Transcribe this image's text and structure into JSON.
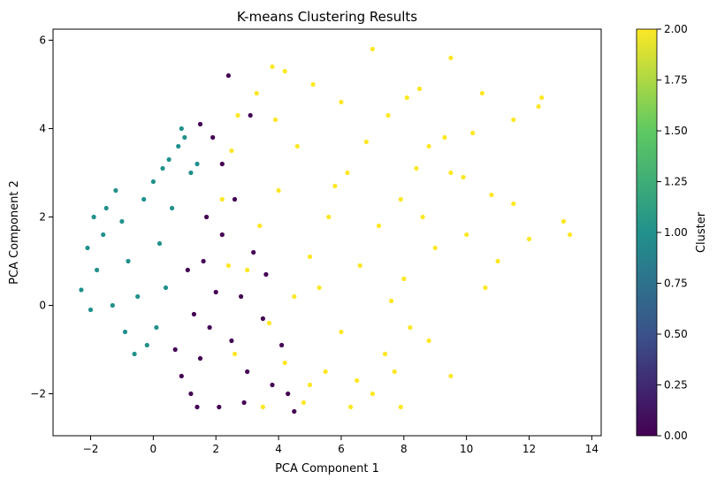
{
  "chart_data": {
    "type": "scatter",
    "title": "K-means Clustering Results",
    "xlabel": "PCA Component 1",
    "ylabel": "PCA Component 2",
    "xlim": [
      -3.2,
      14.3
    ],
    "ylim": [
      -2.95,
      6.25
    ],
    "x_ticks": [
      -2,
      0,
      2,
      4,
      6,
      8,
      10,
      12,
      14
    ],
    "y_ticks": [
      -2,
      0,
      2,
      4,
      6
    ],
    "grid": false,
    "colorbar": {
      "label": "Cluster",
      "range": [
        0.0,
        2.0
      ],
      "ticks": [
        "0.00",
        "0.25",
        "0.50",
        "0.75",
        "1.00",
        "1.25",
        "1.50",
        "1.75",
        "2.00"
      ],
      "colormap_stops": [
        "#440154",
        "#3b528b",
        "#21918c",
        "#5ec962",
        "#fde725"
      ]
    },
    "series": [
      {
        "cluster": 0,
        "color": "#440154",
        "points": [
          [
            0.9,
            -1.6
          ],
          [
            1.2,
            -2.0
          ],
          [
            1.5,
            -1.2
          ],
          [
            1.8,
            -0.5
          ],
          [
            2.0,
            0.3
          ],
          [
            1.6,
            1.0
          ],
          [
            2.2,
            1.6
          ],
          [
            2.5,
            -0.8
          ],
          [
            2.8,
            0.2
          ],
          [
            3.0,
            -1.5
          ],
          [
            3.2,
            1.2
          ],
          [
            3.5,
            -0.3
          ],
          [
            3.8,
            -1.8
          ],
          [
            4.1,
            -0.9
          ],
          [
            2.6,
            2.4
          ],
          [
            2.2,
            3.2
          ],
          [
            1.9,
            3.8
          ],
          [
            1.5,
            4.1
          ],
          [
            2.4,
            5.2
          ],
          [
            3.1,
            4.3
          ],
          [
            4.5,
            -2.4
          ],
          [
            4.3,
            -2.0
          ],
          [
            1.1,
            0.8
          ],
          [
            1.3,
            -0.2
          ],
          [
            1.7,
            2.0
          ],
          [
            2.9,
            -2.2
          ],
          [
            3.6,
            0.7
          ],
          [
            0.7,
            -1.0
          ],
          [
            2.1,
            -2.3
          ],
          [
            1.4,
            -2.3
          ]
        ]
      },
      {
        "cluster": 1,
        "color": "#21918c",
        "points": [
          [
            -2.3,
            0.35
          ],
          [
            -2.0,
            -0.1
          ],
          [
            -1.8,
            0.8
          ],
          [
            -1.6,
            1.6
          ],
          [
            -1.5,
            2.2
          ],
          [
            -1.2,
            2.6
          ],
          [
            -1.0,
            1.9
          ],
          [
            -0.8,
            1.0
          ],
          [
            -0.5,
            0.2
          ],
          [
            -0.9,
            -0.6
          ],
          [
            -0.6,
            -1.1
          ],
          [
            -0.3,
            2.4
          ],
          [
            0.0,
            2.8
          ],
          [
            0.3,
            3.1
          ],
          [
            0.5,
            3.3
          ],
          [
            0.8,
            3.6
          ],
          [
            0.6,
            2.2
          ],
          [
            0.2,
            1.4
          ],
          [
            -1.9,
            2.0
          ],
          [
            -2.1,
            1.3
          ],
          [
            -0.2,
            -0.9
          ],
          [
            0.4,
            0.4
          ],
          [
            0.1,
            -0.5
          ],
          [
            -1.3,
            0.0
          ],
          [
            1.0,
            3.8
          ],
          [
            1.4,
            3.2
          ],
          [
            0.9,
            4.0
          ],
          [
            1.2,
            3.0
          ]
        ]
      },
      {
        "cluster": 2,
        "color": "#fde725",
        "points": [
          [
            2.2,
            2.4
          ],
          [
            2.5,
            3.5
          ],
          [
            2.7,
            4.3
          ],
          [
            3.3,
            4.8
          ],
          [
            3.8,
            5.4
          ],
          [
            4.2,
            5.3
          ],
          [
            5.1,
            5.0
          ],
          [
            6.0,
            4.6
          ],
          [
            7.0,
            5.8
          ],
          [
            7.5,
            4.3
          ],
          [
            8.1,
            4.7
          ],
          [
            8.5,
            4.9
          ],
          [
            9.5,
            5.6
          ],
          [
            10.5,
            4.8
          ],
          [
            11.5,
            4.2
          ],
          [
            12.4,
            4.7
          ],
          [
            12.3,
            4.5
          ],
          [
            9.3,
            3.8
          ],
          [
            10.2,
            3.9
          ],
          [
            8.8,
            3.6
          ],
          [
            7.9,
            2.4
          ],
          [
            8.6,
            2.0
          ],
          [
            9.5,
            3.0
          ],
          [
            10.8,
            2.5
          ],
          [
            11.5,
            2.3
          ],
          [
            10.0,
            1.6
          ],
          [
            13.1,
            1.9
          ],
          [
            13.3,
            1.6
          ],
          [
            12.0,
            1.5
          ],
          [
            9.0,
            1.3
          ],
          [
            8.0,
            0.6
          ],
          [
            7.6,
            0.1
          ],
          [
            8.2,
            -0.5
          ],
          [
            8.8,
            -0.8
          ],
          [
            7.4,
            -1.1
          ],
          [
            9.5,
            -1.6
          ],
          [
            6.5,
            -1.7
          ],
          [
            7.0,
            -2.0
          ],
          [
            7.9,
            -2.3
          ],
          [
            5.5,
            -1.5
          ],
          [
            4.8,
            -2.2
          ],
          [
            4.2,
            -1.3
          ],
          [
            4.5,
            0.2
          ],
          [
            5.0,
            1.1
          ],
          [
            5.6,
            2.0
          ],
          [
            6.2,
            3.0
          ],
          [
            6.8,
            3.7
          ],
          [
            4.0,
            2.6
          ],
          [
            3.4,
            1.8
          ],
          [
            3.0,
            0.8
          ],
          [
            3.7,
            -0.4
          ],
          [
            5.3,
            0.4
          ],
          [
            6.0,
            -0.6
          ],
          [
            6.6,
            0.9
          ],
          [
            7.2,
            1.8
          ],
          [
            5.8,
            2.7
          ],
          [
            4.6,
            3.6
          ],
          [
            3.9,
            4.2
          ],
          [
            5.0,
            -1.8
          ],
          [
            6.3,
            -2.3
          ],
          [
            2.4,
            0.9
          ],
          [
            2.6,
            -1.1
          ],
          [
            3.5,
            -2.3
          ],
          [
            8.4,
            3.1
          ],
          [
            9.9,
            2.9
          ],
          [
            7.7,
            -1.5
          ],
          [
            10.6,
            0.4
          ],
          [
            11.0,
            1.0
          ]
        ]
      }
    ]
  }
}
